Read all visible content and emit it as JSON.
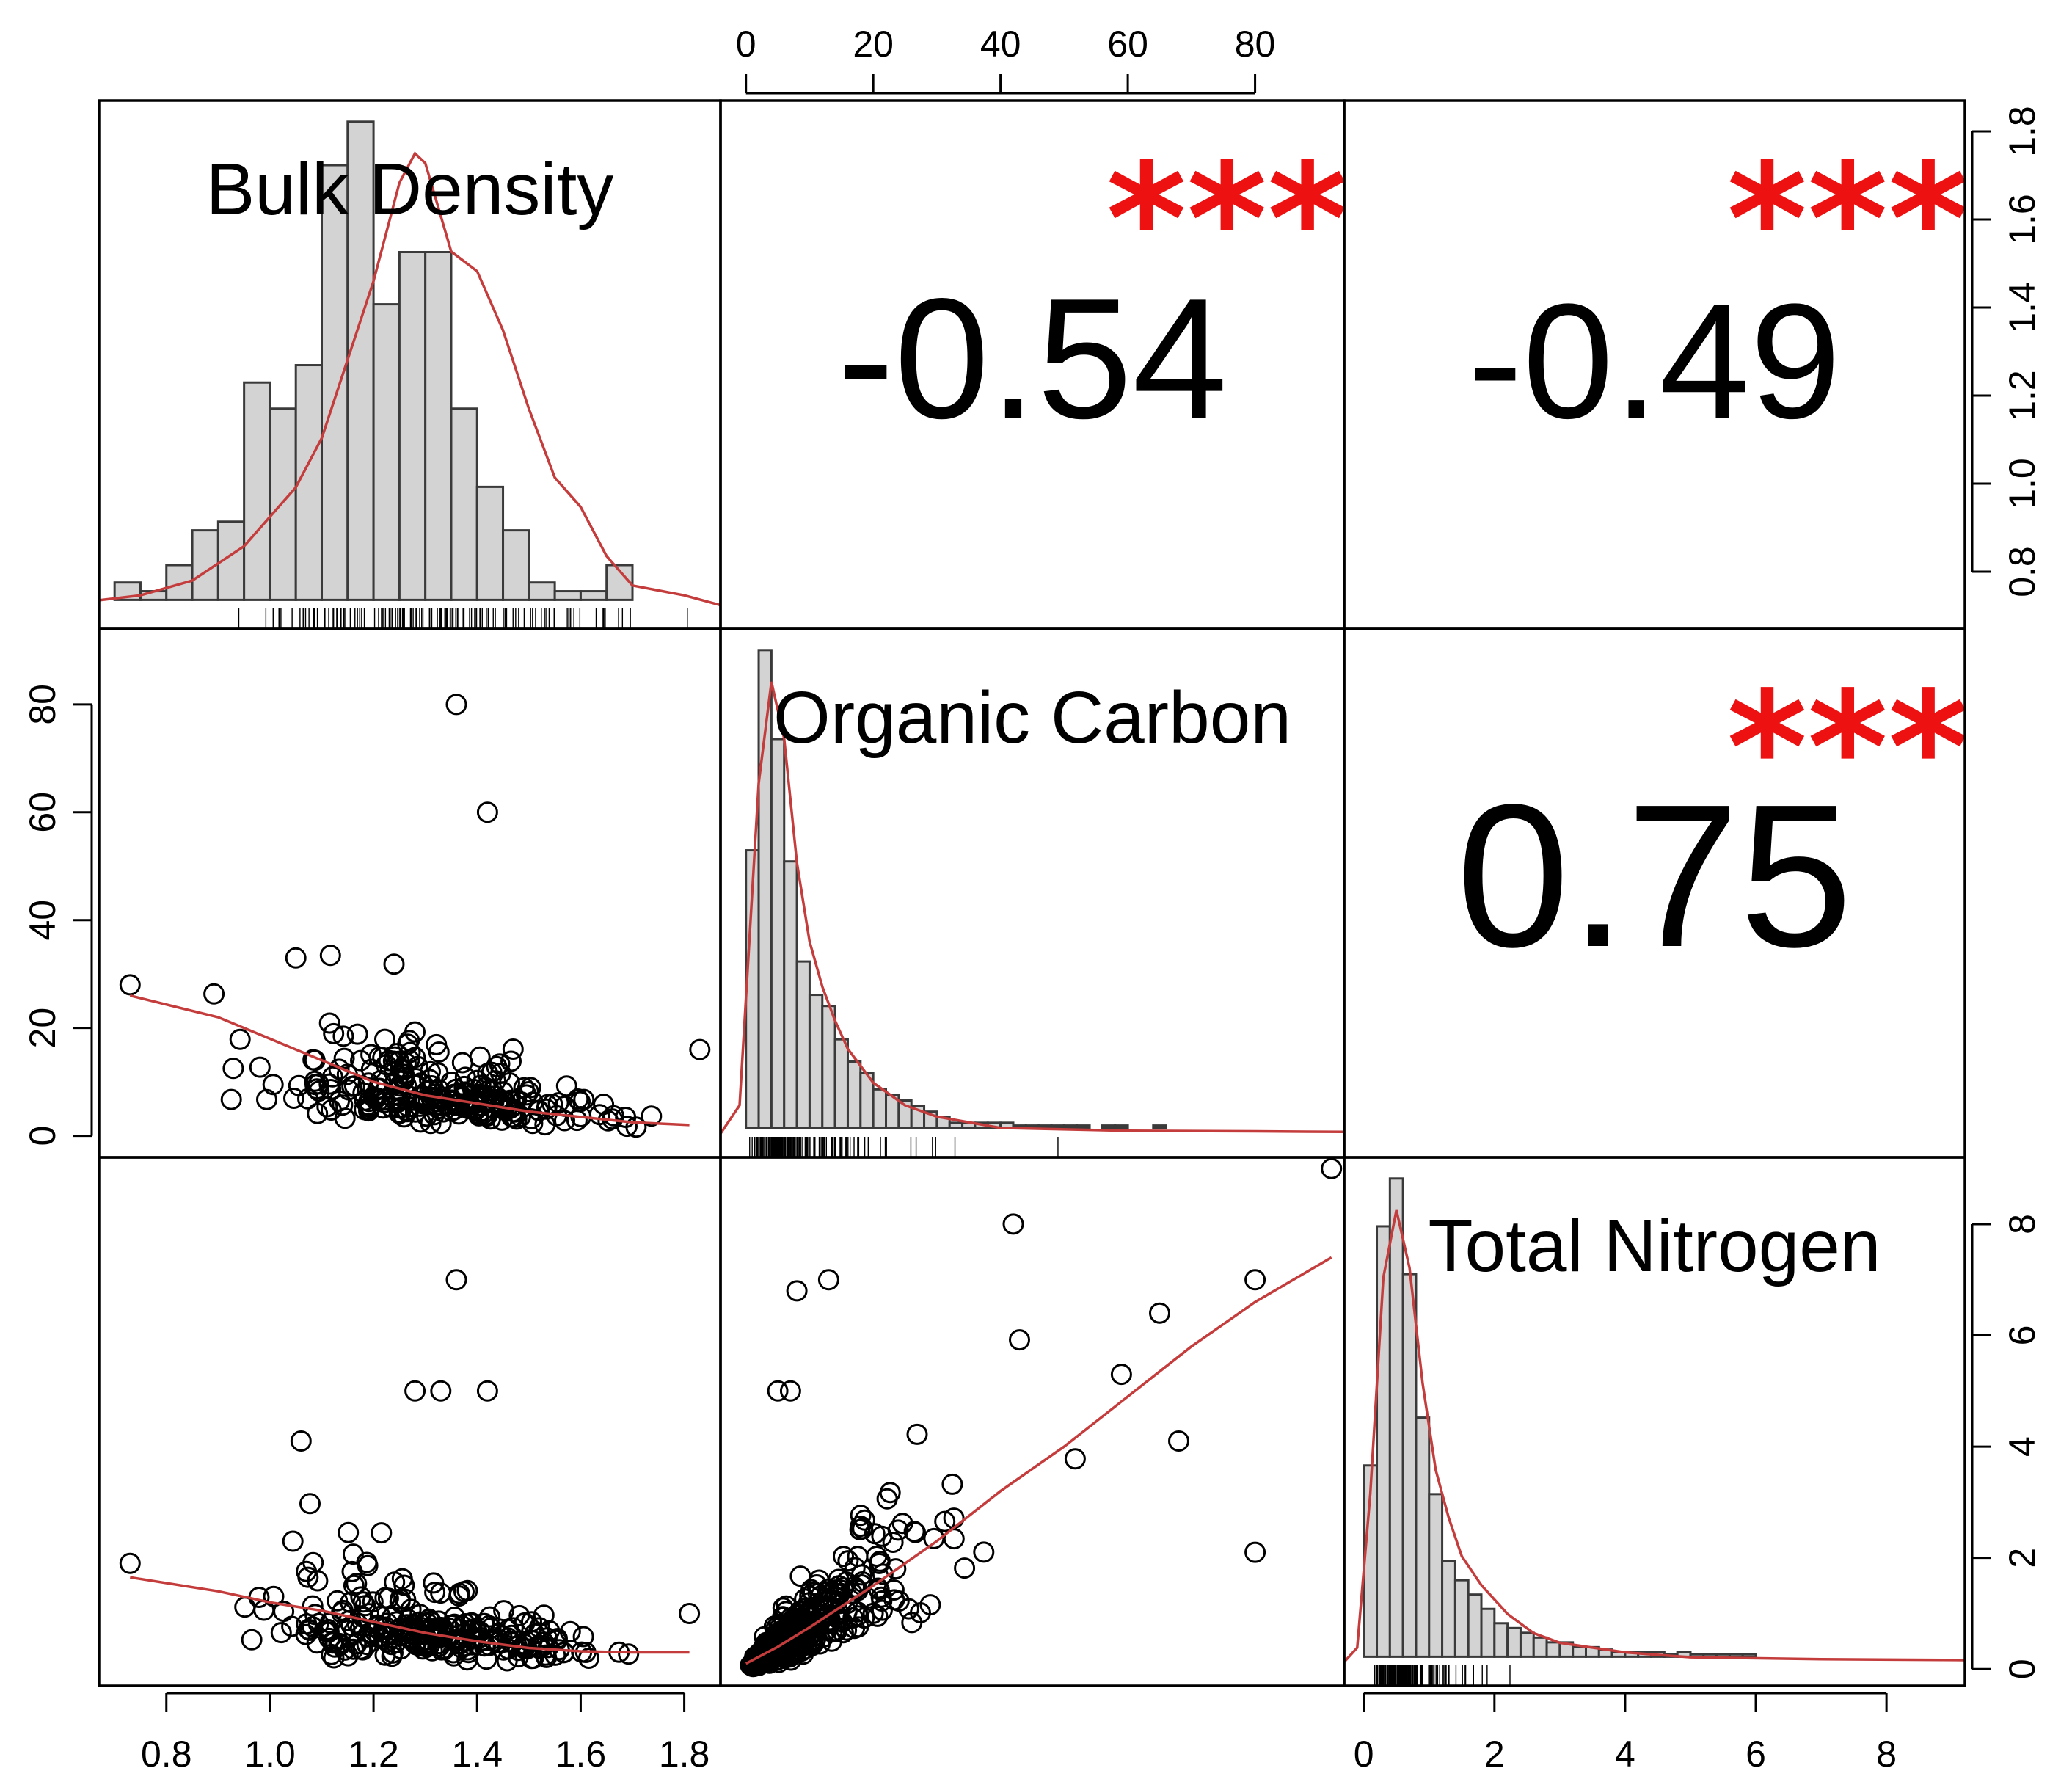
{
  "chart_data": {
    "type": "scatter-matrix",
    "variables": [
      "Bulk Density",
      "Organic Carbon",
      "Total Nitrogen"
    ],
    "ranges": {
      "Bulk Density": [
        0.67,
        1.87
      ],
      "Organic Carbon": [
        -4,
        94
      ],
      "Total Nitrogen": [
        -0.3,
        9.2
      ]
    },
    "axis_ticks": {
      "bottom": [
        {
          "variable": "Bulk Density",
          "ticks": [
            0.8,
            1.0,
            1.2,
            1.4,
            1.6,
            1.8
          ],
          "labels": [
            "0.8",
            "1.0",
            "1.2",
            "1.4",
            "1.6",
            "1.8"
          ]
        },
        {
          "variable": "Total Nitrogen",
          "ticks": [
            0,
            2,
            4,
            6,
            8
          ],
          "labels": [
            "0",
            "2",
            "4",
            "6",
            "8"
          ]
        }
      ],
      "top": [
        {
          "variable": "Organic Carbon",
          "ticks": [
            0,
            20,
            40,
            60,
            80
          ],
          "labels": [
            "0",
            "20",
            "40",
            "60",
            "80"
          ]
        }
      ],
      "left": [
        {
          "variable": "Organic Carbon",
          "ticks": [
            0,
            20,
            40,
            60,
            80
          ],
          "labels": [
            "0",
            "20",
            "40",
            "60",
            "80"
          ]
        }
      ],
      "right": [
        {
          "variable": "Bulk Density",
          "ticks": [
            0.8,
            1.0,
            1.2,
            1.4,
            1.6,
            1.8
          ],
          "labels": [
            "0.8",
            "1.0",
            "1.2",
            "1.4",
            "1.6",
            "1.8"
          ]
        },
        {
          "variable": "Total Nitrogen",
          "ticks": [
            0,
            2,
            4,
            6,
            8
          ],
          "labels": [
            "0",
            "2",
            "4",
            "6",
            "8"
          ]
        }
      ]
    },
    "correlations": [
      {
        "pair": [
          "Bulk Density",
          "Organic Carbon"
        ],
        "r": "-0.54",
        "stars": "***"
      },
      {
        "pair": [
          "Bulk Density",
          "Total Nitrogen"
        ],
        "r": "-0.49",
        "stars": "***"
      },
      {
        "pair": [
          "Organic Carbon",
          "Total Nitrogen"
        ],
        "r": "0.75",
        "stars": "***"
      }
    ],
    "histograms": {
      "Bulk Density": {
        "bin_start": 0.7,
        "bin_width": 0.05,
        "counts": [
          2,
          1,
          4,
          8,
          9,
          25,
          22,
          27,
          50,
          55,
          34,
          40,
          40,
          22,
          13,
          8,
          2,
          1,
          1,
          4
        ],
        "density": [
          [
            0.67,
            0.5
          ],
          [
            0.75,
            1
          ],
          [
            0.85,
            2.5
          ],
          [
            0.95,
            6
          ],
          [
            1.05,
            12
          ],
          [
            1.1,
            17
          ],
          [
            1.15,
            25
          ],
          [
            1.2,
            33
          ],
          [
            1.25,
            43
          ],
          [
            1.28,
            46
          ],
          [
            1.3,
            45
          ],
          [
            1.35,
            36
          ],
          [
            1.4,
            34
          ],
          [
            1.45,
            28
          ],
          [
            1.5,
            20
          ],
          [
            1.55,
            13
          ],
          [
            1.6,
            10
          ],
          [
            1.65,
            5
          ],
          [
            1.7,
            2
          ],
          [
            1.8,
            1
          ],
          [
            1.87,
            0
          ]
        ]
      },
      "Organic Carbon": {
        "bin_start": 0,
        "bin_width": 2,
        "counts": [
          50,
          86,
          70,
          48,
          30,
          24,
          22,
          16,
          12,
          10,
          7,
          6,
          5,
          4,
          3,
          2,
          1,
          1,
          1,
          1,
          1,
          0.5,
          0.5,
          0.5,
          0.5,
          0.5,
          0.5,
          0,
          0.5,
          0.5,
          0,
          0,
          0.5,
          0,
          0,
          0,
          0,
          0,
          0,
          0,
          0,
          0,
          0,
          0,
          0
        ],
        "density": [
          [
            -4,
            0
          ],
          [
            -1,
            5
          ],
          [
            0,
            24
          ],
          [
            2,
            62
          ],
          [
            4,
            80
          ],
          [
            6,
            70
          ],
          [
            8,
            48
          ],
          [
            10,
            34
          ],
          [
            12,
            26
          ],
          [
            14,
            20
          ],
          [
            16,
            15
          ],
          [
            20,
            9
          ],
          [
            25,
            5
          ],
          [
            30,
            3
          ],
          [
            40,
            1
          ],
          [
            60,
            0.5
          ],
          [
            80,
            0.4
          ],
          [
            94,
            0.3
          ]
        ]
      },
      "Total Nitrogen": {
        "bin_start": 0,
        "bin_width": 0.2,
        "counts": [
          40,
          90,
          100,
          80,
          50,
          34,
          20,
          16,
          13,
          10,
          7,
          6,
          5,
          4,
          3,
          3,
          2,
          2,
          1.5,
          1,
          1,
          1,
          1,
          0.5,
          1,
          0.5,
          0.5,
          0.5,
          0.5,
          0.5,
          0,
          0,
          0,
          0,
          0,
          0,
          0,
          0,
          0,
          0
        ],
        "density": [
          [
            -0.3,
            0
          ],
          [
            -0.1,
            3
          ],
          [
            0.1,
            35
          ],
          [
            0.3,
            80
          ],
          [
            0.5,
            94
          ],
          [
            0.7,
            82
          ],
          [
            0.9,
            58
          ],
          [
            1.1,
            40
          ],
          [
            1.3,
            30
          ],
          [
            1.5,
            22
          ],
          [
            1.8,
            16
          ],
          [
            2.2,
            10
          ],
          [
            2.6,
            6
          ],
          [
            3,
            4
          ],
          [
            4,
            2
          ],
          [
            5,
            1
          ],
          [
            7,
            0.6
          ],
          [
            9.2,
            0.4
          ]
        ]
      }
    },
    "scatter": {
      "bd_oc_smooth": [
        [
          0.73,
          26
        ],
        [
          0.9,
          22
        ],
        [
          1.0,
          18
        ],
        [
          1.1,
          14
        ],
        [
          1.2,
          10
        ],
        [
          1.3,
          7.5
        ],
        [
          1.4,
          6
        ],
        [
          1.5,
          4.5
        ],
        [
          1.6,
          3.5
        ],
        [
          1.7,
          2.5
        ],
        [
          1.81,
          2
        ]
      ],
      "bd_tn_smooth": [
        [
          0.73,
          1.65
        ],
        [
          0.9,
          1.4
        ],
        [
          1.0,
          1.2
        ],
        [
          1.1,
          1.05
        ],
        [
          1.2,
          0.85
        ],
        [
          1.3,
          0.65
        ],
        [
          1.4,
          0.5
        ],
        [
          1.5,
          0.38
        ],
        [
          1.6,
          0.32
        ],
        [
          1.7,
          0.3
        ],
        [
          1.81,
          0.3
        ]
      ],
      "oc_tn_smooth": [
        [
          0,
          0.1
        ],
        [
          5,
          0.4
        ],
        [
          10,
          0.75
        ],
        [
          20,
          1.5
        ],
        [
          30,
          2.3
        ],
        [
          40,
          3.2
        ],
        [
          50,
          4.0
        ],
        [
          60,
          4.9
        ],
        [
          70,
          5.8
        ],
        [
          80,
          6.6
        ],
        [
          92,
          7.4
        ]
      ]
    }
  }
}
